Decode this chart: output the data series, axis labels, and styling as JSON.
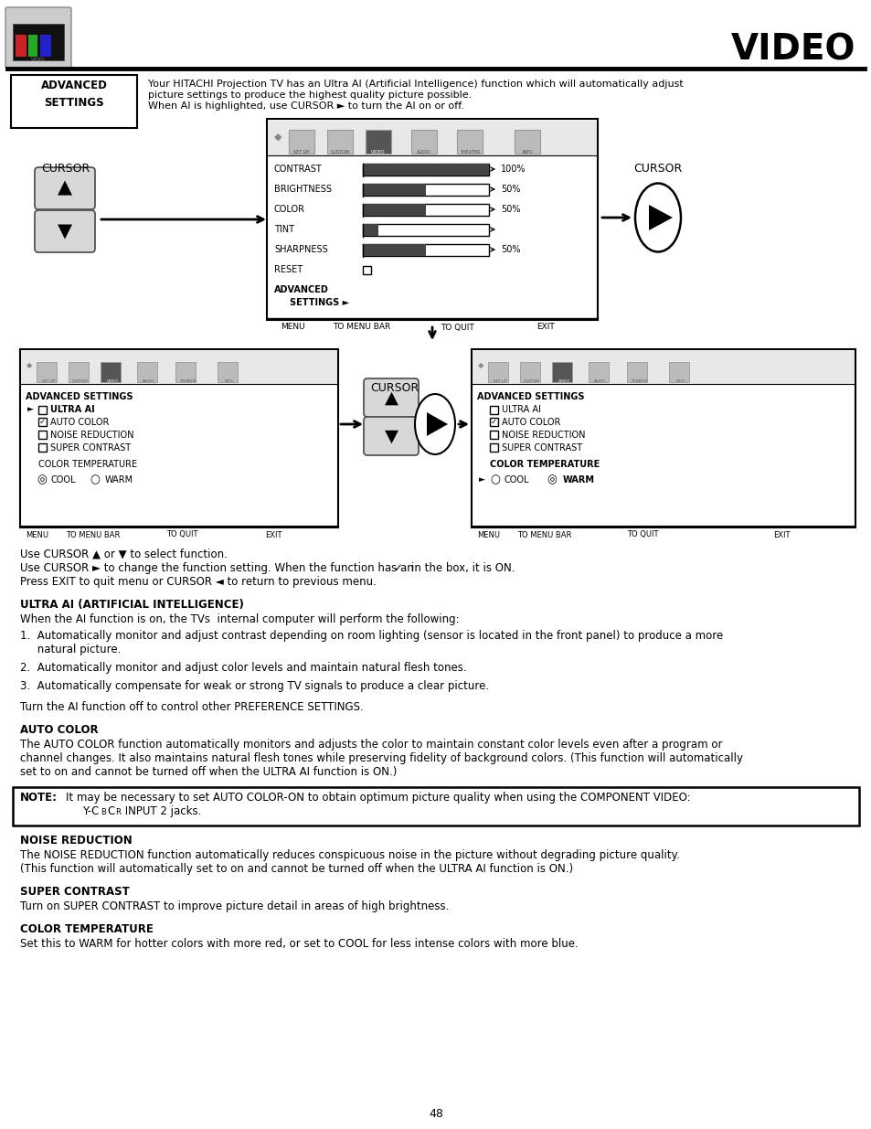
{
  "bg_color": "#ffffff",
  "text_color": "#000000",
  "title": "VIDEO",
  "page_number": "48",
  "header_text1": "Your HITACHI Projection TV has an Ultra AI (Artificial Intelligence) function which will automatically adjust",
  "header_text2": "picture settings to produce the highest quality picture possible.",
  "header_text3": "When AI is highlighted, use CURSOR ► to turn the AI on or off.",
  "section_ultra_ai_title": "ULTRA AI (ARTIFICIAL INTELLIGENCE)",
  "section_ultra_ai_text": "When the AI function is on, the TVs  internal computer will perform the following:",
  "item1a": "1.  Automatically monitor and adjust contrast depending on room lighting (sensor is located in the front panel) to produce a more",
  "item1b": "     natural picture.",
  "item2": "2.  Automatically monitor and adjust color levels and maintain natural flesh tones.",
  "item3": "3.  Automatically compensate for weak or strong TV signals to produce a clear picture.",
  "turn_off_text": "Turn the AI function off to control other PREFERENCE SETTINGS.",
  "auto_color_title": "AUTO COLOR",
  "auto_color_text1": "The AUTO COLOR function automatically monitors and adjusts the color to maintain constant color levels even after a program or",
  "auto_color_text2": "channel changes. It also maintains natural flesh tones while preserving fidelity of background colors. (This function will automatically",
  "auto_color_text3": "set to on and cannot be turned off when the ULTRA AI function is ON.)",
  "note_label": "NOTE:",
  "note_text1": "It may be necessary to set AUTO COLOR-ON to obtain optimum picture quality when using the COMPONENT VIDEO:",
  "noise_red_title": "NOISE REDUCTION",
  "noise_red_text1": "The NOISE REDUCTION function automatically reduces conspicuous noise in the picture without degrading picture quality.",
  "noise_red_text2": "(This function will automatically set to on and cannot be turned off when the ULTRA AI function is ON.)",
  "super_contrast_title": "SUPER CONTRAST",
  "super_contrast_text": "Turn on SUPER CONTRAST to improve picture detail in areas of high brightness.",
  "color_temp_title": "COLOR TEMPERATURE",
  "color_temp_text": "Set this to WARM for hotter colors with more red, or set to COOL for less intense colors with more blue.",
  "use_cursor_text1": "Use CURSOR ▲ or ▼ to select function.",
  "use_cursor_text2a": "Use CURSOR ► to change the function setting. When the function has an",
  "use_cursor_text2b": "in the box, it is ON.",
  "use_cursor_text3": "Press EXIT to quit menu or CURSOR ◄ to return to previous menu."
}
